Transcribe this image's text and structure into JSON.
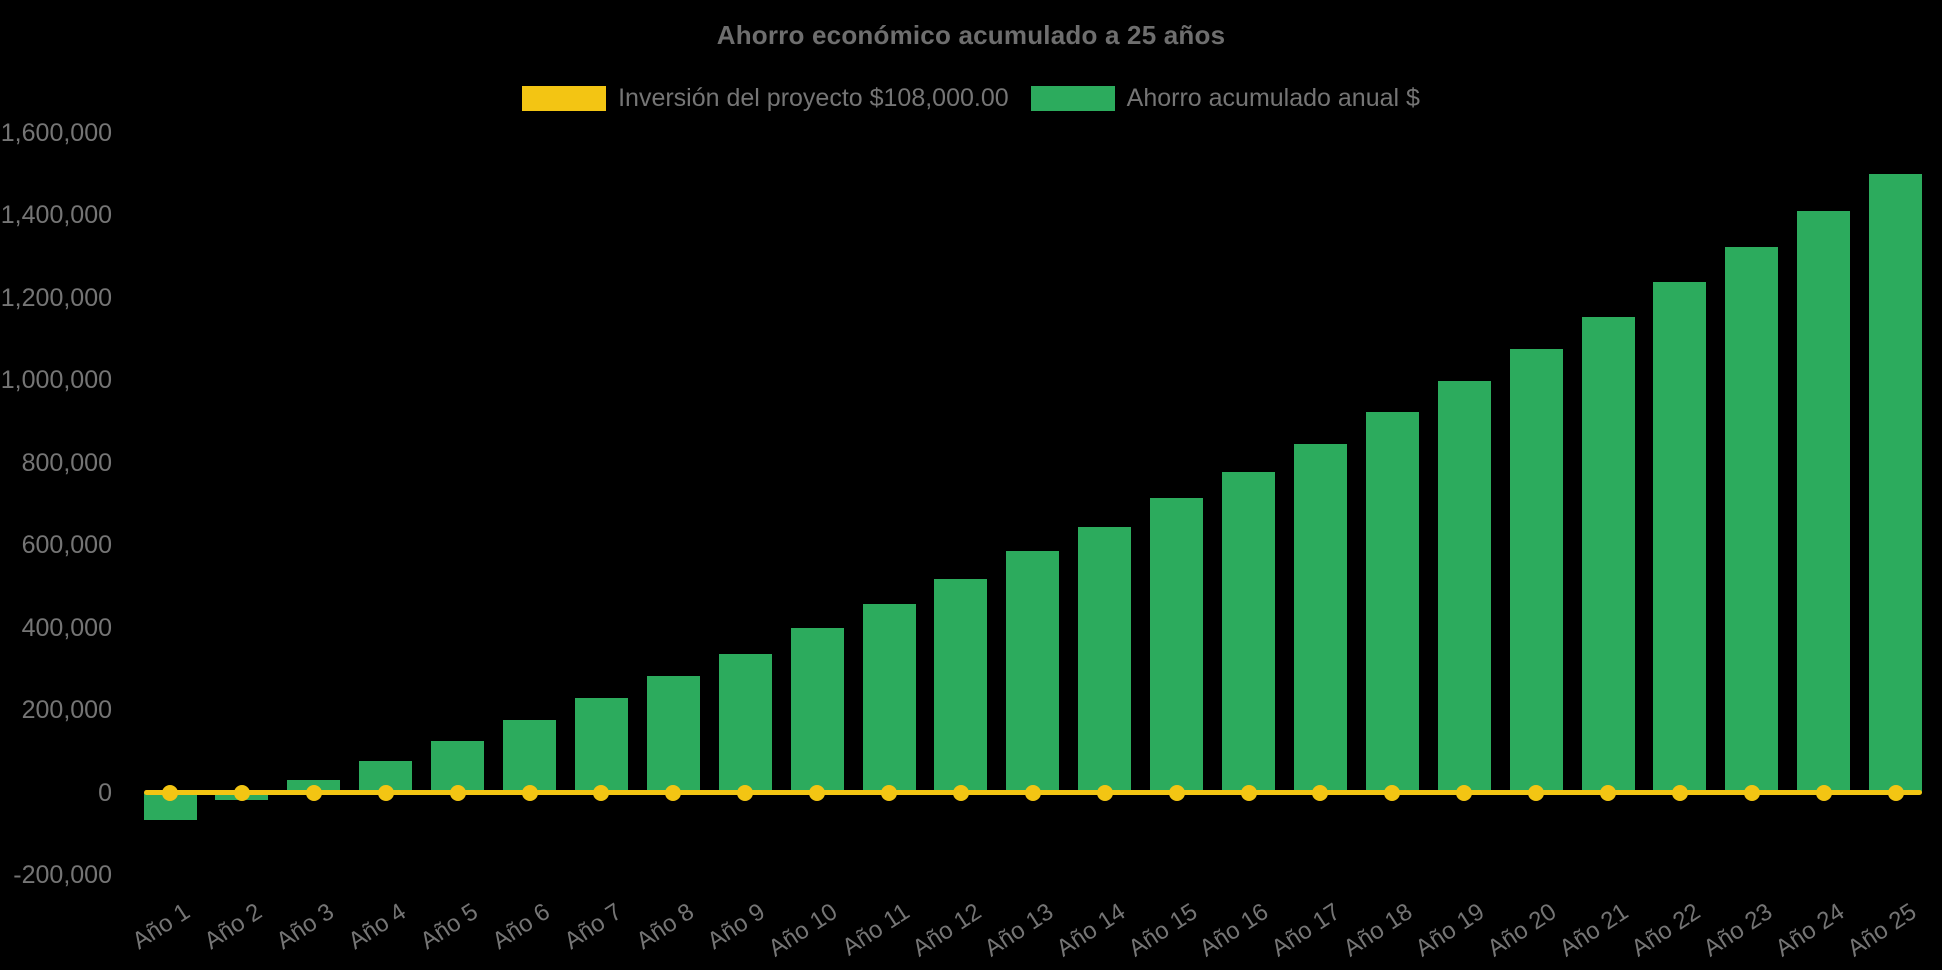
{
  "title": "Ahorro económico acumulado a 25 años",
  "colors": {
    "background": "#000000",
    "bar_green": "#2CAB5D",
    "line_yellow": "#F3C513",
    "text_gray": "#757575",
    "title_gray": "#6E6E6E"
  },
  "chart_data": {
    "type": "bar",
    "title": "Ahorro económico acumulado a 25 años",
    "categories": [
      "Año 1",
      "Año 2",
      "Año 3",
      "Año 4",
      "Año 5",
      "Año 6",
      "Año 7",
      "Año 8",
      "Año 9",
      "Año 10",
      "Año 11",
      "Año 12",
      "Año 13",
      "Año 14",
      "Año 15",
      "Año 16",
      "Año 17",
      "Año 18",
      "Año 19",
      "Año 20",
      "Año 21",
      "Año 22",
      "Año 23",
      "Año 24",
      "Año 25"
    ],
    "series": [
      {
        "name": "Inversión del proyecto $108,000.00",
        "type": "line",
        "color": "#F3C513",
        "marker": "circle",
        "values": [
          0,
          0,
          0,
          0,
          0,
          0,
          0,
          0,
          0,
          0,
          0,
          0,
          0,
          0,
          0,
          0,
          0,
          0,
          0,
          0,
          0,
          0,
          0,
          0,
          0
        ]
      },
      {
        "name": "Ahorro acumulado anual $",
        "type": "bar",
        "color": "#2CAB5D",
        "values": [
          -67000,
          -18000,
          30000,
          77000,
          124000,
          175000,
          229000,
          282000,
          336000,
          398000,
          457000,
          517000,
          585000,
          644000,
          713000,
          778000,
          846000,
          923000,
          998000,
          1074000,
          1153000,
          1237000,
          1322000,
          1410000,
          1500000
        ]
      }
    ],
    "y_axis": {
      "min": -200000,
      "max": 1600000,
      "tick_step": 200000,
      "tick_labels": [
        "1,600,000",
        "1,400,000",
        "1,200,000",
        "1,000,000",
        "800,000",
        "600,000",
        "400,000",
        "200,000",
        "0",
        "-200,000"
      ]
    },
    "x_axis": {
      "label_rotation_deg": -33
    },
    "grid": false,
    "legend_position": "top",
    "background": "#000000"
  }
}
